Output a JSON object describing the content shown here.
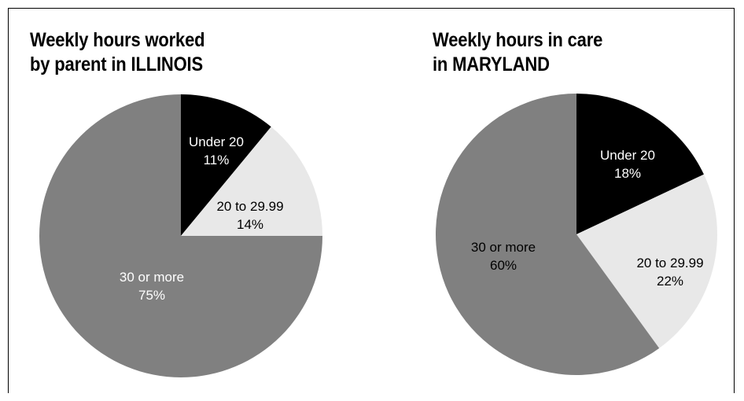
{
  "colors": {
    "black": "#000000",
    "light_gray": "#e8e8e8",
    "mid_gray": "#808080"
  },
  "chart_data": [
    {
      "type": "pie",
      "title_lines": [
        "Weekly hours worked",
        "by parent in ILLINOIS"
      ],
      "slices": [
        {
          "label": "Under 20",
          "value": 11,
          "value_label": "11%",
          "color": "#000000",
          "text_color": "#ffffff"
        },
        {
          "label": "20 to 29.99",
          "value": 14,
          "value_label": "14%",
          "color": "#e8e8e8",
          "text_color": "#000000"
        },
        {
          "label": "30 or more",
          "value": 75,
          "value_label": "75%",
          "color": "#808080",
          "text_color": "#ffffff"
        }
      ]
    },
    {
      "type": "pie",
      "title_lines": [
        "Weekly hours in care",
        "in MARYLAND"
      ],
      "slices": [
        {
          "label": "Under 20",
          "value": 18,
          "value_label": "18%",
          "color": "#000000",
          "text_color": "#ffffff"
        },
        {
          "label": "20 to 29.99",
          "value": 22,
          "value_label": "22%",
          "color": "#e8e8e8",
          "text_color": "#000000"
        },
        {
          "label": "30 or more",
          "value": 60,
          "value_label": "60%",
          "color": "#808080",
          "text_color": "#000000"
        }
      ]
    }
  ]
}
